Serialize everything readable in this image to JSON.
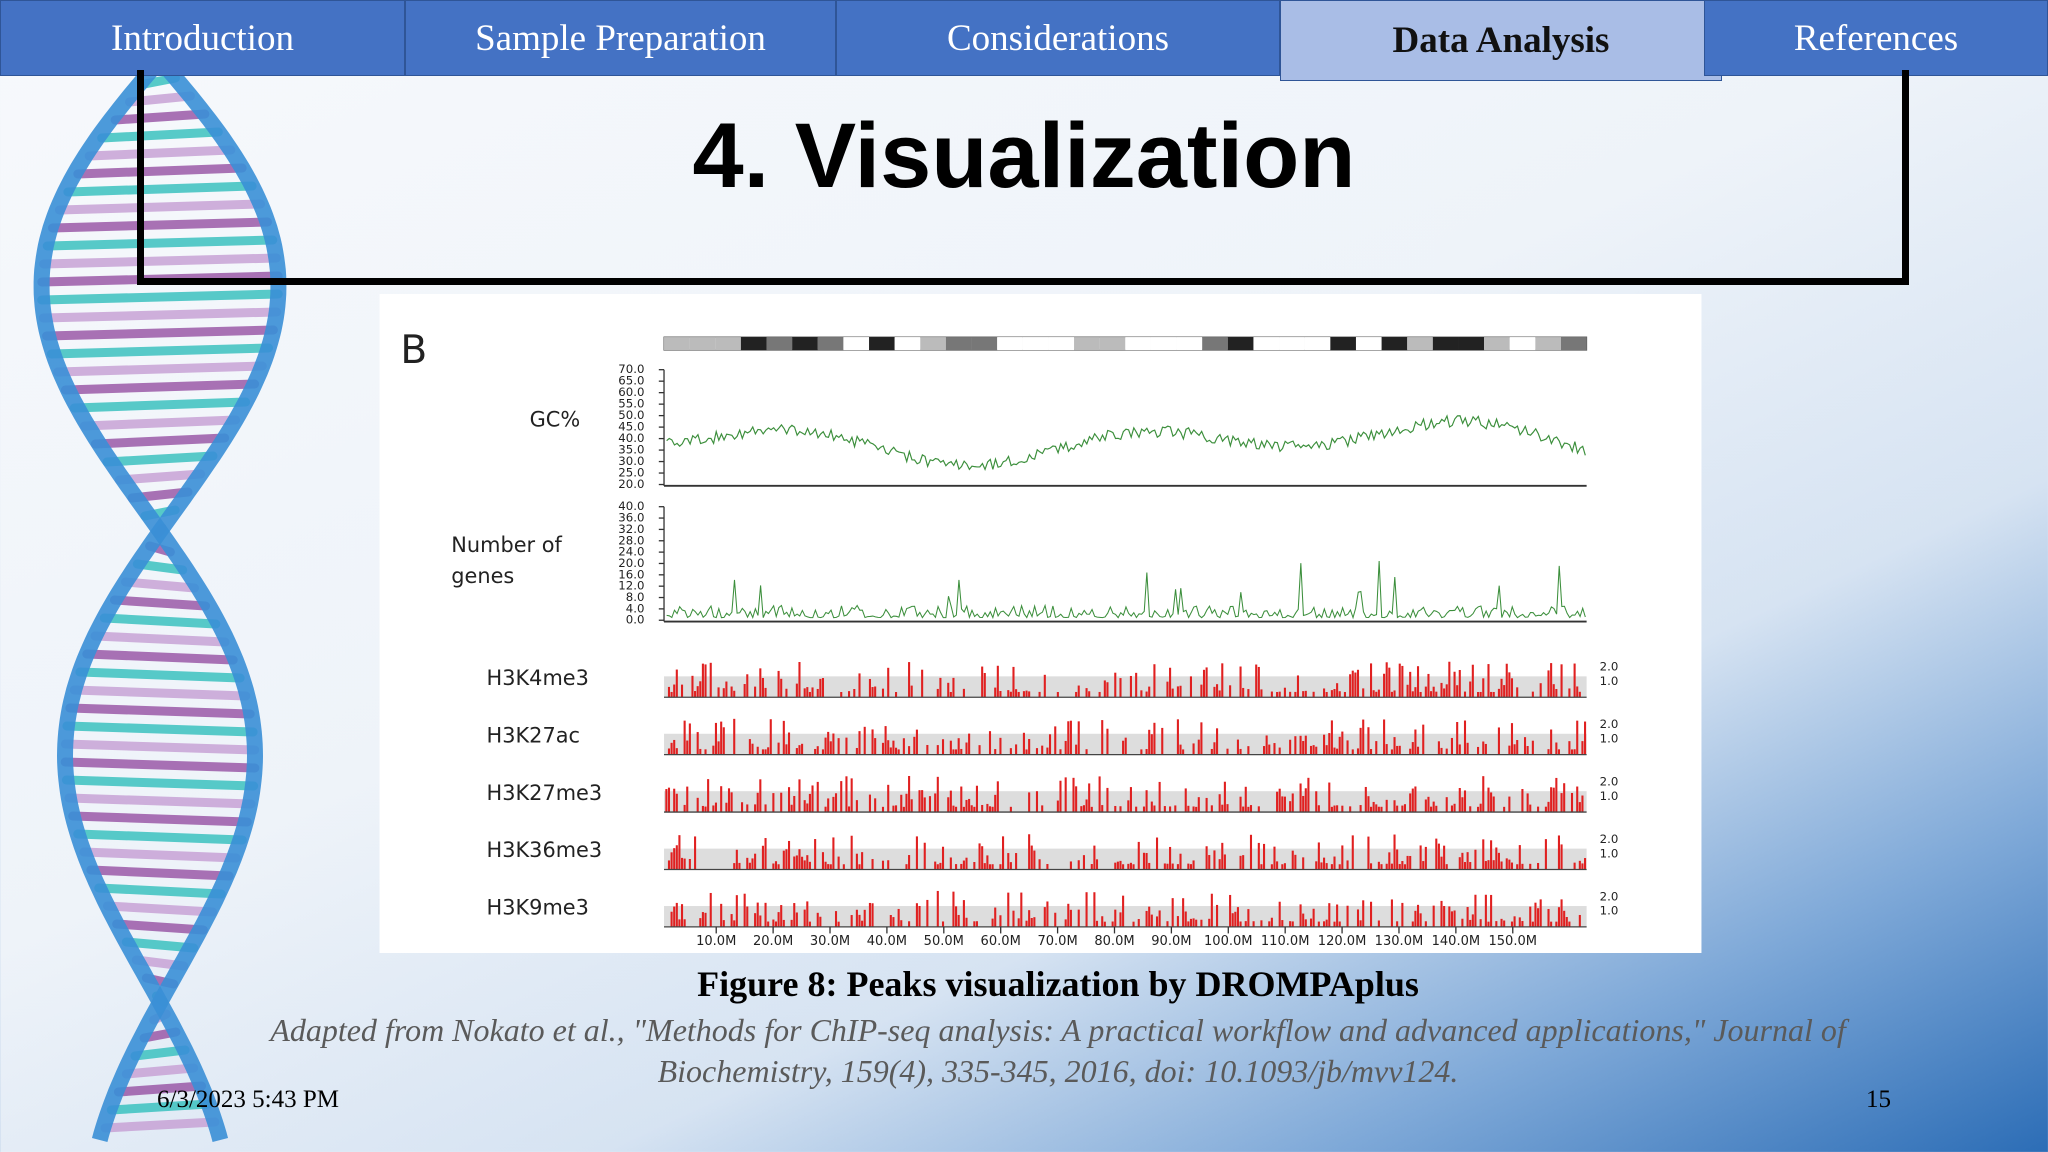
{
  "nav": {
    "tabs": [
      "Introduction",
      "Sample Preparation",
      "Considerations",
      "Data Analysis",
      "References"
    ],
    "active": 3
  },
  "slide": {
    "title": "4. Visualization"
  },
  "figure": {
    "panel_label": "B",
    "gc": {
      "label": "GC%",
      "ticks": [
        "70.0",
        "65.0",
        "60.0",
        "55.0",
        "50.0",
        "45.0",
        "40.0",
        "35.0",
        "30.0",
        "25.0",
        "20.0"
      ]
    },
    "genes": {
      "label_lines": [
        "Number of",
        "genes"
      ],
      "ticks": [
        "40.0",
        "36.0",
        "32.0",
        "28.0",
        "24.0",
        "20.0",
        "16.0",
        "12.0",
        "8.0",
        "4.0",
        "0.0"
      ]
    },
    "tracks": [
      {
        "name": "H3K4me3",
        "scale": [
          "2.0",
          "1.0"
        ]
      },
      {
        "name": "H3K27ac",
        "scale": [
          "2.0",
          "1.0"
        ]
      },
      {
        "name": "H3K27me3",
        "scale": [
          "2.0",
          "1.0"
        ]
      },
      {
        "name": "H3K36me3",
        "scale": [
          "2.0",
          "1.0"
        ]
      },
      {
        "name": "H3K9me3",
        "scale": [
          "2.0",
          "1.0"
        ]
      }
    ],
    "x_labels": [
      "10.0M",
      "20.0M",
      "30.0M",
      "40.0M",
      "50.0M",
      "60.0M",
      "70.0M",
      "80.0M",
      "90.0M",
      "100.0M",
      "110.0M",
      "120.0M",
      "130.0M",
      "140.0M",
      "150.0M"
    ],
    "caption": "Figure 8: Peaks visualization by DROMPAplus",
    "citation": [
      "Adapted from Nokato et al., \"Methods for ChIP-seq analysis: A practical workflow and advanced applications,\" Journal of",
      "Biochemistry, 159(4), 335-345, 2016, doi: 10.1093/jb/mvv124."
    ]
  },
  "footer": {
    "date": "6/3/2023 5:43 PM",
    "page": "15"
  }
}
